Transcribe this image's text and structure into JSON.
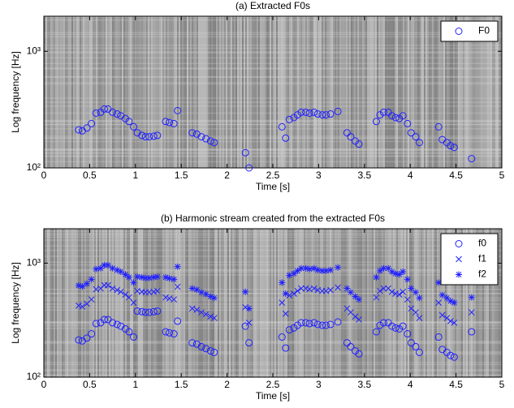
{
  "chart_data": [
    {
      "type": "scatter",
      "title": "(a) Extracted F0s",
      "xlabel": "Time [s]",
      "ylabel": "Log frequency [Hz]",
      "xlim": [
        0,
        5
      ],
      "xticks": [
        0,
        0.5,
        1,
        1.5,
        2,
        2.5,
        3,
        3.5,
        4,
        4.5,
        5
      ],
      "ylim": [
        100,
        2000
      ],
      "yscale": "log",
      "yticks": [
        {
          "value": 100,
          "label": "10²"
        },
        {
          "value": 1000,
          "label": "10³"
        }
      ],
      "legend": "upper right",
      "x": [
        0.38,
        0.42,
        0.47,
        0.52,
        0.57,
        0.62,
        0.66,
        0.7,
        0.75,
        0.8,
        0.84,
        0.89,
        0.93,
        0.98,
        1.02,
        1.07,
        1.11,
        1.15,
        1.2,
        1.24,
        1.33,
        1.37,
        1.42,
        1.46,
        1.62,
        1.67,
        1.72,
        1.77,
        1.82,
        1.86,
        2.2,
        2.24,
        2.6,
        2.64,
        2.68,
        2.73,
        2.77,
        2.81,
        2.86,
        2.9,
        2.95,
        2.99,
        3.04,
        3.08,
        3.13,
        3.21,
        3.31,
        3.35,
        3.4,
        3.44,
        3.63,
        3.67,
        3.71,
        3.76,
        3.8,
        3.84,
        3.88,
        3.92,
        3.97,
        4.01,
        4.06,
        4.1,
        4.31,
        4.35,
        4.4,
        4.44,
        4.48,
        4.67
      ],
      "series": [
        {
          "name": "F0",
          "color": "#2020ff",
          "marker": "o",
          "values": [
            212,
            208,
            220,
            240,
            295,
            300,
            320,
            320,
            300,
            290,
            280,
            265,
            250,
            225,
            200,
            190,
            185,
            185,
            187,
            190,
            250,
            245,
            240,
            310,
            200,
            195,
            185,
            178,
            170,
            165,
            135,
            100,
            225,
            180,
            260,
            270,
            285,
            300,
            300,
            295,
            300,
            290,
            285,
            285,
            290,
            305,
            200,
            185,
            170,
            160,
            250,
            285,
            300,
            300,
            280,
            270,
            265,
            280,
            240,
            200,
            185,
            165,
            225,
            175,
            165,
            155,
            150,
            120
          ]
        }
      ]
    },
    {
      "type": "scatter",
      "title": "(b) Harmonic stream created from the extracted F0s",
      "xlabel": "Time [s]",
      "ylabel": "Log frequency [Hz]",
      "xlim": [
        0,
        5
      ],
      "xticks": [
        0,
        0.5,
        1,
        1.5,
        2,
        2.5,
        3,
        3.5,
        4,
        4.5,
        5
      ],
      "ylim": [
        100,
        2000
      ],
      "yscale": "log",
      "yticks": [
        {
          "value": 100,
          "label": "10²"
        },
        {
          "value": 1000,
          "label": "10³"
        }
      ],
      "legend": "upper right",
      "x": [
        0.38,
        0.42,
        0.47,
        0.52,
        0.57,
        0.62,
        0.66,
        0.7,
        0.75,
        0.8,
        0.84,
        0.89,
        0.93,
        0.98,
        1.02,
        1.07,
        1.11,
        1.15,
        1.2,
        1.24,
        1.33,
        1.37,
        1.42,
        1.46,
        1.62,
        1.67,
        1.72,
        1.77,
        1.82,
        1.86,
        2.2,
        2.24,
        2.6,
        2.64,
        2.68,
        2.73,
        2.77,
        2.81,
        2.86,
        2.9,
        2.95,
        2.99,
        3.04,
        3.08,
        3.13,
        3.21,
        3.31,
        3.35,
        3.4,
        3.44,
        3.63,
        3.67,
        3.71,
        3.76,
        3.8,
        3.84,
        3.88,
        3.92,
        3.97,
        4.01,
        4.06,
        4.1,
        4.31,
        4.35,
        4.4,
        4.44,
        4.48,
        4.67
      ],
      "series": [
        {
          "name": "f0",
          "color": "#2020ff",
          "marker": "o",
          "values": [
            212,
            208,
            220,
            240,
            295,
            300,
            320,
            320,
            300,
            290,
            280,
            265,
            250,
            225,
            380,
            375,
            370,
            370,
            375,
            380,
            250,
            245,
            240,
            310,
            200,
            195,
            185,
            178,
            170,
            165,
            280,
            200,
            225,
            180,
            260,
            270,
            285,
            300,
            300,
            295,
            300,
            290,
            285,
            285,
            290,
            305,
            200,
            185,
            170,
            160,
            250,
            285,
            300,
            300,
            280,
            270,
            265,
            280,
            240,
            200,
            185,
            165,
            225,
            175,
            165,
            155,
            150,
            250
          ]
        },
        {
          "name": "f1",
          "color": "#2020ff",
          "marker": "x",
          "values": [
            424,
            416,
            440,
            480,
            590,
            600,
            640,
            640,
            600,
            580,
            560,
            530,
            500,
            450,
            570,
            560,
            555,
            555,
            560,
            570,
            500,
            490,
            480,
            620,
            400,
            390,
            370,
            356,
            340,
            330,
            410,
            300,
            450,
            360,
            520,
            540,
            570,
            600,
            600,
            590,
            600,
            580,
            570,
            570,
            580,
            610,
            400,
            370,
            340,
            320,
            500,
            570,
            600,
            600,
            560,
            540,
            530,
            560,
            480,
            400,
            370,
            330,
            450,
            350,
            330,
            310,
            300,
            370
          ]
        },
        {
          "name": "f2",
          "color": "#2020ff",
          "marker": "*",
          "values": [
            636,
            624,
            660,
            720,
            885,
            900,
            960,
            960,
            900,
            870,
            840,
            795,
            750,
            675,
            760,
            750,
            740,
            740,
            750,
            760,
            750,
            735,
            720,
            930,
            600,
            585,
            555,
            534,
            510,
            495,
            560,
            400,
            675,
            540,
            780,
            810,
            855,
            900,
            900,
            885,
            900,
            870,
            855,
            855,
            870,
            915,
            600,
            555,
            510,
            480,
            750,
            855,
            900,
            900,
            840,
            810,
            795,
            840,
            720,
            600,
            555,
            495,
            675,
            525,
            495,
            465,
            450,
            500
          ]
        }
      ]
    }
  ]
}
